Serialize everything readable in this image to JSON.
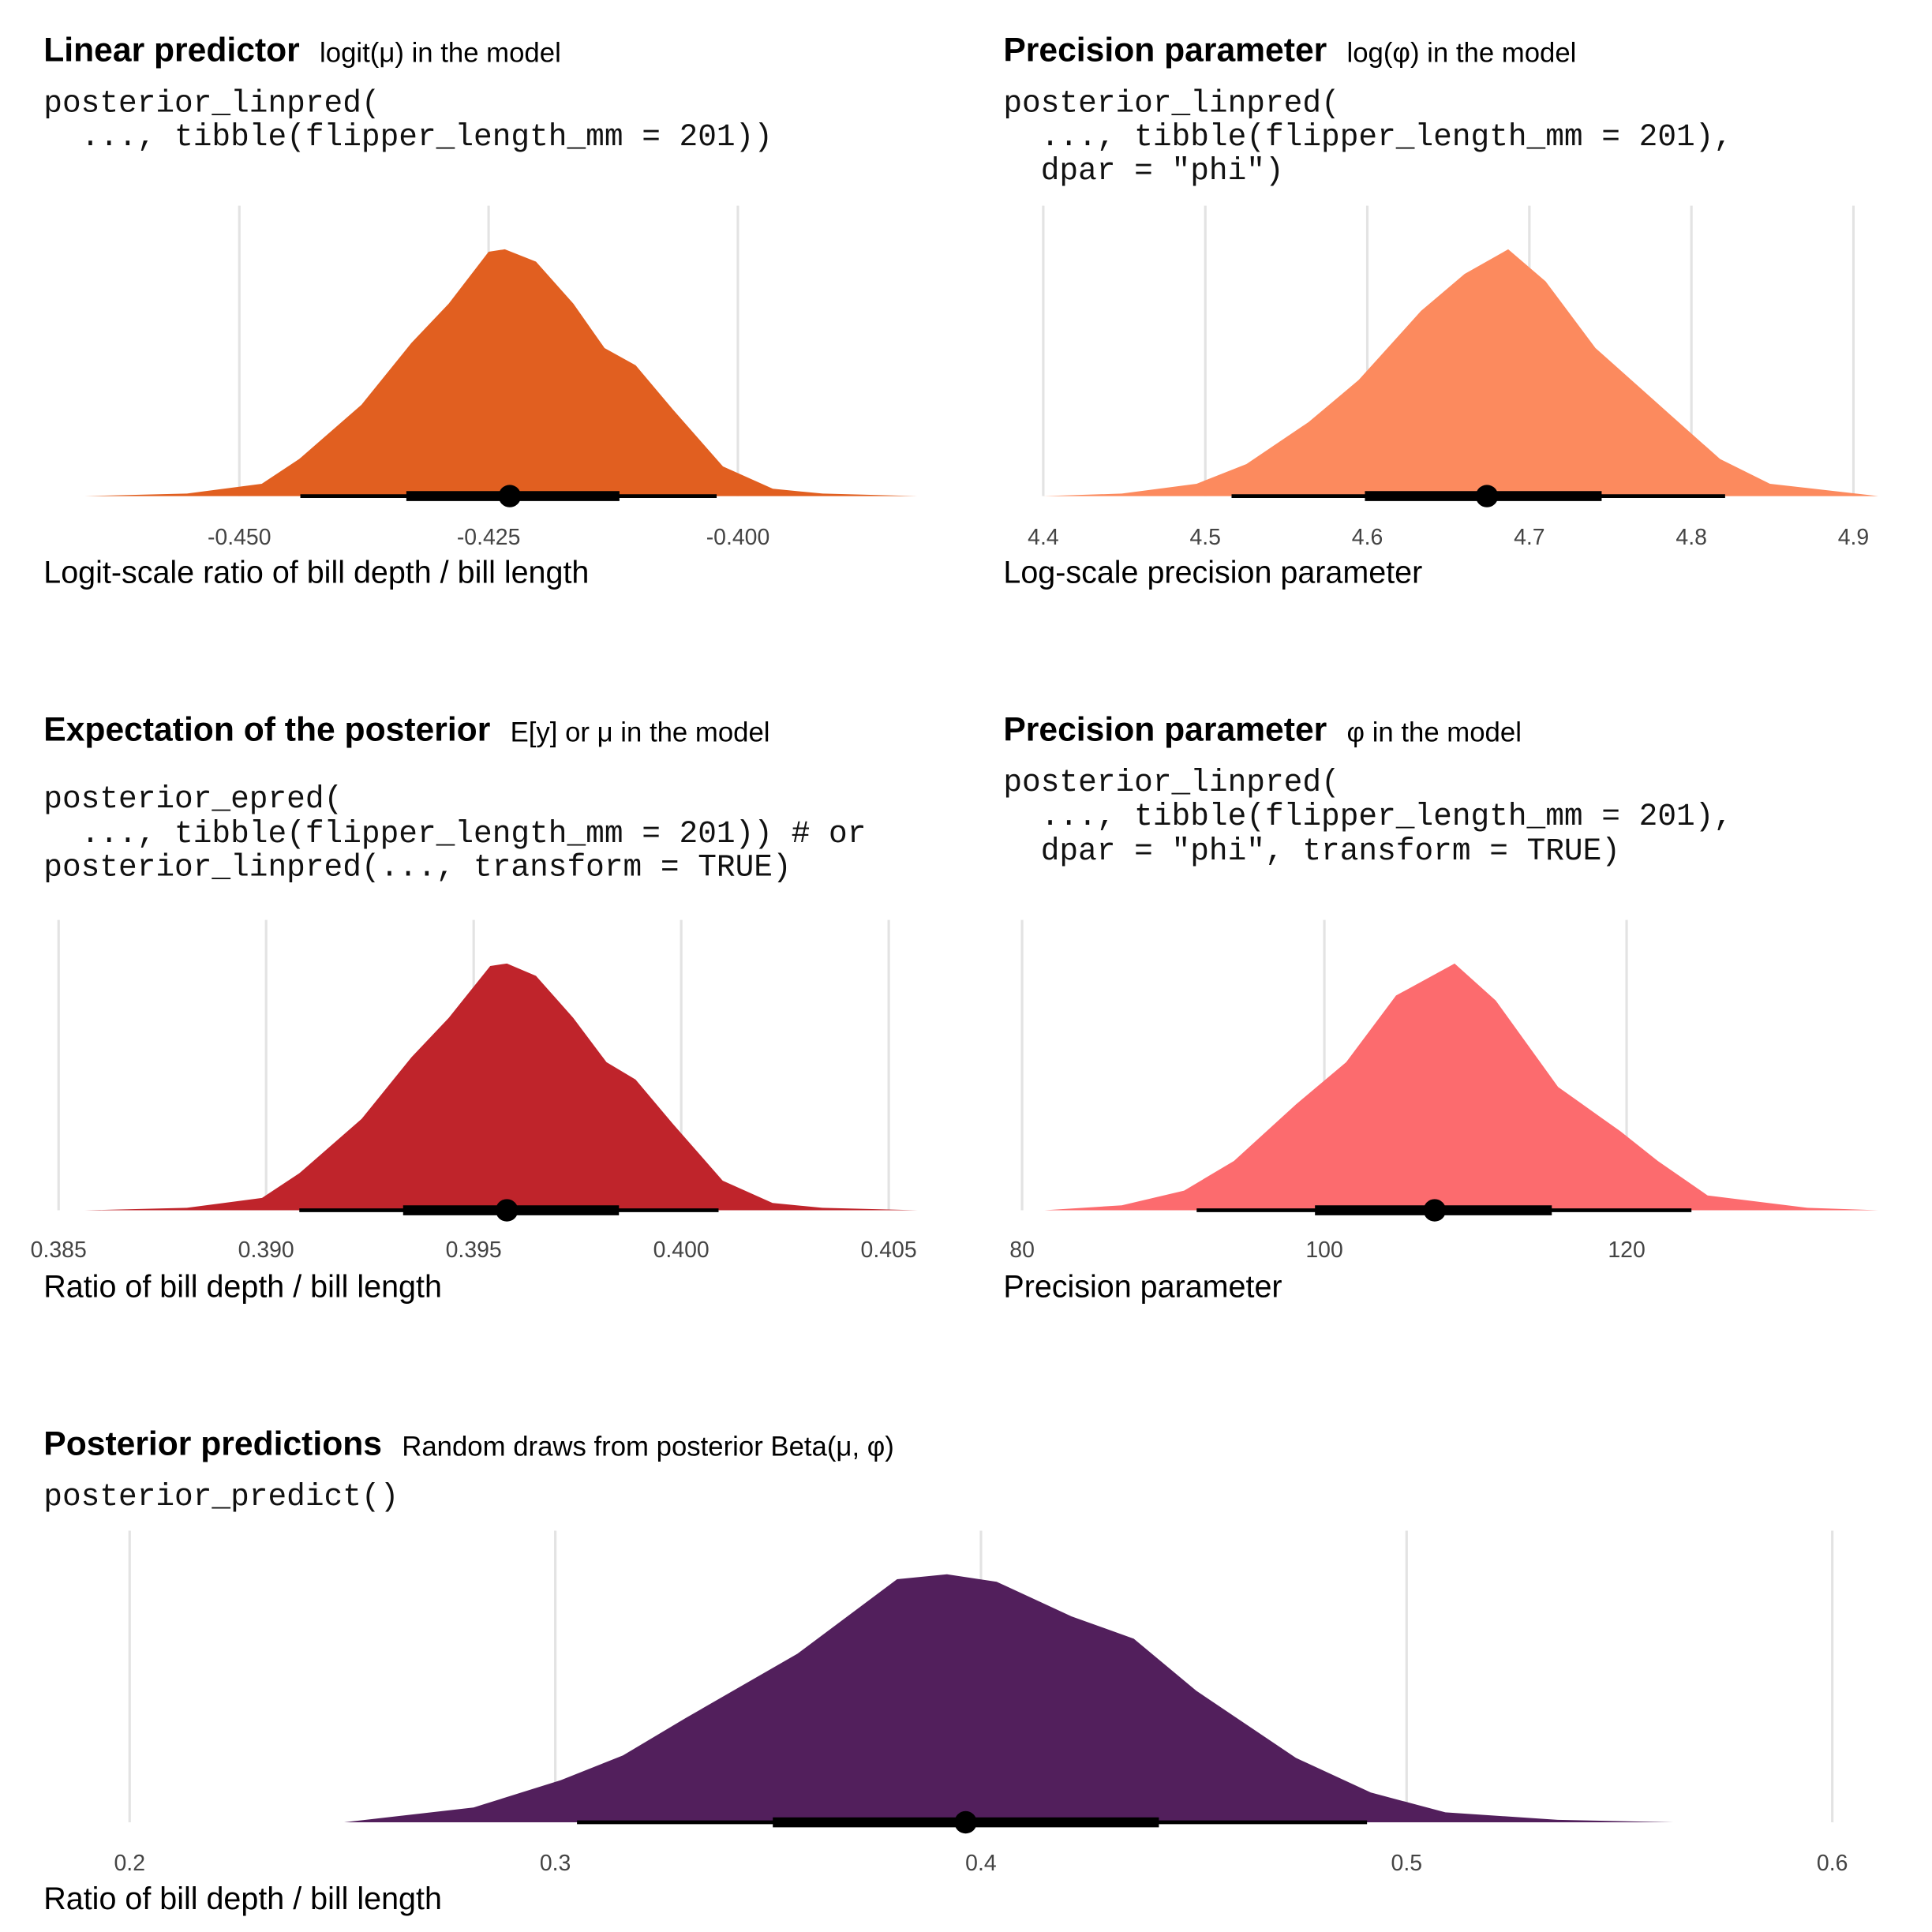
{
  "chart_data": [
    {
      "type": "halfeye",
      "title": "Linear predictor",
      "subtitle": "logit(μ) in the model",
      "code": [
        "posterior_linpred(",
        "  ..., tibble(flipper_length_mm = 201))"
      ],
      "xlabel": "Logit-scale ratio of bill depth / bill length",
      "color": "#E15F20",
      "grid": true,
      "x": [
        -0.4655,
        -0.45525,
        -0.44775,
        -0.444,
        -0.43775,
        -0.43275,
        -0.429,
        -0.425,
        -0.42338,
        -0.42025,
        -0.4165,
        -0.41338,
        -0.41025,
        -0.4065,
        -0.4015,
        -0.3965,
        -0.3915,
        -0.382
      ],
      "values": [
        0,
        0.01,
        0.05,
        0.15,
        0.37,
        0.62,
        0.78,
        0.99,
        1.0,
        0.95,
        0.78,
        0.6,
        0.53,
        0.35,
        0.12,
        0.03,
        0.01,
        0
      ],
      "interval": {
        "point": -0.42288,
        "inner": [
          -0.43325,
          -0.41188
        ],
        "outer": [
          -0.44388,
          -0.40213
        ]
      },
      "xlim": [
        -0.4655,
        -0.382
      ],
      "ylim": [
        0,
        1
      ],
      "xticks": [
        {
          "value": -0.45,
          "label": "-0.450"
        },
        -0.425,
        {
          "value": -0.4,
          "label": "-0.400"
        }
      ]
    },
    {
      "type": "halfeye",
      "title": "Precision parameter",
      "subtitle": "log(φ) in the model",
      "code": [
        "posterior_linpred(",
        "  ..., tibble(flipper_length_mm = 201),",
        "  dpar = \"phi\")"
      ],
      "xlabel": "Log-scale precision parameter",
      "color": "#FC8A5E",
      "grid": true,
      "x": [
        4.4,
        4.4485,
        4.4946,
        4.5254,
        4.5638,
        4.5946,
        4.6331,
        4.66,
        4.6869,
        4.71,
        4.7408,
        4.7869,
        4.8177,
        4.8485,
        4.9154
      ],
      "values": [
        0,
        0.01,
        0.05,
        0.13,
        0.3,
        0.47,
        0.75,
        0.9,
        1.0,
        0.87,
        0.6,
        0.33,
        0.15,
        0.05,
        0
      ],
      "interval": {
        "point": 4.6738,
        "inner": [
          4.5985,
          4.7446
        ],
        "outer": [
          4.5162,
          4.8208
        ]
      },
      "xlim": [
        4.4,
        4.9154
      ],
      "ylim": [
        0,
        1
      ],
      "xticks": [
        4.4,
        4.5,
        4.6,
        4.7,
        4.8,
        4.9
      ]
    },
    {
      "type": "halfeye",
      "title": "Expectation of the posterior",
      "subtitle": "E[y] or μ in the model",
      "code": [
        "posterior_epred(",
        "  ..., tibble(flipper_length_mm = 201)) # or",
        "posterior_linpred(..., transform = TRUE)"
      ],
      "xlabel": "Ratio of bill depth / bill length",
      "color": "#BF242B",
      "grid": true,
      "x": [
        0.38563,
        0.38809,
        0.3899,
        0.3908,
        0.3923,
        0.3935,
        0.3944,
        0.3954,
        0.3958,
        0.3965,
        0.3974,
        0.3982,
        0.3989,
        0.3998,
        0.401,
        0.4022,
        0.4034,
        0.4057
      ],
      "values": [
        0,
        0.01,
        0.05,
        0.15,
        0.37,
        0.62,
        0.78,
        0.99,
        1.0,
        0.95,
        0.78,
        0.6,
        0.53,
        0.35,
        0.12,
        0.03,
        0.01,
        0
      ],
      "interval": {
        "point": 0.3958,
        "inner": [
          0.3933,
          0.3985
        ],
        "outer": [
          0.3908,
          0.4009
        ]
      },
      "xlim": [
        0.385,
        0.40569
      ],
      "ylim": [
        0,
        1
      ],
      "xticks": [
        0.385,
        {
          "value": 0.39,
          "label": "0.390"
        },
        0.395,
        {
          "value": 0.4,
          "label": "0.400"
        },
        0.405
      ]
    },
    {
      "type": "halfeye",
      "title": "Precision parameter",
      "subtitle": "φ in the model",
      "code": [
        "posterior_linpred(",
        "  ..., tibble(flipper_length_mm = 201),",
        "  dpar = \"phi\", transform = TRUE)"
      ],
      "xlabel": "Precision parameter",
      "color": "#FC6B6E",
      "grid": true,
      "x": [
        81.48,
        86.6,
        90.72,
        94.02,
        98.14,
        101.44,
        104.74,
        108.62,
        111.34,
        115.46,
        119.59,
        122.06,
        125.36,
        131.96,
        136.66
      ],
      "values": [
        0,
        0.02,
        0.08,
        0.2,
        0.43,
        0.6,
        0.87,
        1.0,
        0.85,
        0.5,
        0.32,
        0.2,
        0.06,
        0.01,
        0
      ],
      "interval": {
        "point": 107.3,
        "inner": [
          99.38,
          115.05
        ],
        "outer": [
          91.55,
          124.29
        ]
      },
      "xlim": [
        80,
        136.66
      ],
      "ylim": [
        0,
        1
      ],
      "xticks": [
        80,
        100,
        120
      ]
    },
    {
      "type": "halfeye",
      "title": "Posterior predictions",
      "subtitle": "Random draws from posterior Beta(μ, φ)",
      "code": [
        "posterior_predict()"
      ],
      "xlabel": "Ratio of bill depth / bill length",
      "color": "#521F5C",
      "grid": true,
      "x": [
        0.2504,
        0.2808,
        0.3013,
        0.3159,
        0.3306,
        0.3569,
        0.3803,
        0.392,
        0.4037,
        0.4213,
        0.4359,
        0.4506,
        0.474,
        0.4916,
        0.5091,
        0.5355,
        0.5627
      ],
      "values": [
        0,
        0.06,
        0.17,
        0.27,
        0.42,
        0.68,
        0.98,
        1.0,
        0.97,
        0.83,
        0.74,
        0.53,
        0.26,
        0.12,
        0.04,
        0.01,
        0
      ],
      "interval": {
        "point": 0.3964,
        "inner": [
          0.3511,
          0.4418
        ],
        "outer": [
          0.3051,
          0.4907
        ]
      },
      "xlim": [
        0.2,
        0.6
      ],
      "ylim": [
        0,
        1
      ],
      "xticks": [
        0.2,
        0.3,
        0.4,
        0.5,
        0.6
      ]
    }
  ]
}
